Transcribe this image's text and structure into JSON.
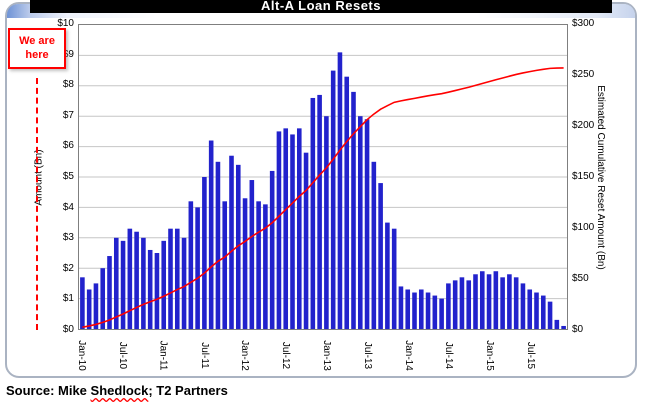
{
  "slide": {
    "title": "Alt-A Loan Resets"
  },
  "callout": {
    "line1": "We are",
    "line2": "here"
  },
  "source": {
    "prefix": "Source: Mike ",
    "underlined": "Shedlock",
    "suffix": "; T2 Partners"
  },
  "chart_data": {
    "type": "bar",
    "title": "Alt-A Loan Resets",
    "ylabel_left": "Amount (Bn)",
    "ylabel_right": "Estimated Cumulative Reset Amount (Bn)",
    "grid": "horizontal",
    "legend_position": "none",
    "y_left": {
      "min": 0,
      "max": 10,
      "tick_labels": [
        "$0",
        "$1",
        "$2",
        "$3",
        "$4",
        "$5",
        "$6",
        "$7",
        "$8",
        "$9",
        "$10"
      ]
    },
    "y_right": {
      "min": 0,
      "max": 300,
      "tick_labels": [
        "$0",
        "$50",
        "$100",
        "$150",
        "$200",
        "$250",
        "$300"
      ]
    },
    "x_tick_every": 6,
    "categories": [
      "Jan-10",
      "Feb-10",
      "Mar-10",
      "Apr-10",
      "May-10",
      "Jun-10",
      "Jul-10",
      "Aug-10",
      "Sep-10",
      "Oct-10",
      "Nov-10",
      "Dec-10",
      "Jan-11",
      "Feb-11",
      "Mar-11",
      "Apr-11",
      "May-11",
      "Jun-11",
      "Jul-11",
      "Aug-11",
      "Sep-11",
      "Oct-11",
      "Nov-11",
      "Dec-11",
      "Jan-12",
      "Feb-12",
      "Mar-12",
      "Apr-12",
      "May-12",
      "Jun-12",
      "Jul-12",
      "Aug-12",
      "Sep-12",
      "Oct-12",
      "Nov-12",
      "Dec-12",
      "Jan-13",
      "Feb-13",
      "Mar-13",
      "Apr-13",
      "May-13",
      "Jun-13",
      "Jul-13",
      "Aug-13",
      "Sep-13",
      "Oct-13",
      "Nov-13",
      "Dec-13",
      "Jan-14",
      "Feb-14",
      "Mar-14",
      "Apr-14",
      "May-14",
      "Jun-14",
      "Jul-14",
      "Aug-14",
      "Sep-14",
      "Oct-14",
      "Nov-14",
      "Dec-14",
      "Jan-15",
      "Feb-15",
      "Mar-15",
      "Apr-15",
      "May-15",
      "Jun-15",
      "Jul-15",
      "Aug-15",
      "Sep-15",
      "Oct-15",
      "Nov-15",
      "Dec-15"
    ],
    "series": [
      {
        "name": "Monthly Alt-A reset amount (Bn)",
        "type": "bar",
        "axis": "left",
        "color": "#2222CC",
        "values": [
          1.7,
          1.3,
          1.5,
          2.0,
          2.4,
          3.0,
          2.9,
          3.3,
          3.2,
          3.0,
          2.6,
          2.5,
          2.9,
          3.3,
          3.3,
          3.0,
          4.2,
          4.0,
          5.0,
          6.2,
          5.5,
          4.2,
          5.7,
          5.4,
          4.3,
          4.9,
          4.2,
          4.1,
          5.2,
          6.5,
          6.6,
          6.4,
          6.6,
          5.8,
          7.6,
          7.7,
          7.0,
          8.5,
          9.1,
          8.3,
          7.8,
          7.0,
          6.9,
          5.5,
          4.8,
          3.5,
          3.3,
          1.4,
          1.3,
          1.2,
          1.3,
          1.2,
          1.1,
          1.0,
          1.5,
          1.6,
          1.7,
          1.6,
          1.8,
          1.9,
          1.8,
          1.9,
          1.7,
          1.8,
          1.7,
          1.5,
          1.3,
          1.2,
          1.1,
          0.9,
          0.3,
          0.1
        ]
      },
      {
        "name": "Estimated cumulative reset amount (Bn)",
        "type": "line",
        "axis": "right",
        "color": "#FF0000",
        "values": [
          1.7,
          3.0,
          4.5,
          6.5,
          8.9,
          11.9,
          14.8,
          18.1,
          21.3,
          24.3,
          26.9,
          29.4,
          32.3,
          35.6,
          38.9,
          41.9,
          46.1,
          50.1,
          55.1,
          61.3,
          66.8,
          71.0,
          76.7,
          82.1,
          86.4,
          91.3,
          95.5,
          99.6,
          104.8,
          111.3,
          117.9,
          124.3,
          130.9,
          136.7,
          144.3,
          152.0,
          159.0,
          167.5,
          176.6,
          184.9,
          192.7,
          199.7,
          206.6,
          212.1,
          216.9,
          220.4,
          223.7,
          225.1,
          226.4,
          227.6,
          228.9,
          230.1,
          231.2,
          232.2,
          233.7,
          235.3,
          237.0,
          238.6,
          240.4,
          242.3,
          244.1,
          246.0,
          247.7,
          249.5,
          251.2,
          252.7,
          254.0,
          255.2,
          256.3,
          257.2,
          257.5,
          257.6
        ]
      }
    ]
  }
}
